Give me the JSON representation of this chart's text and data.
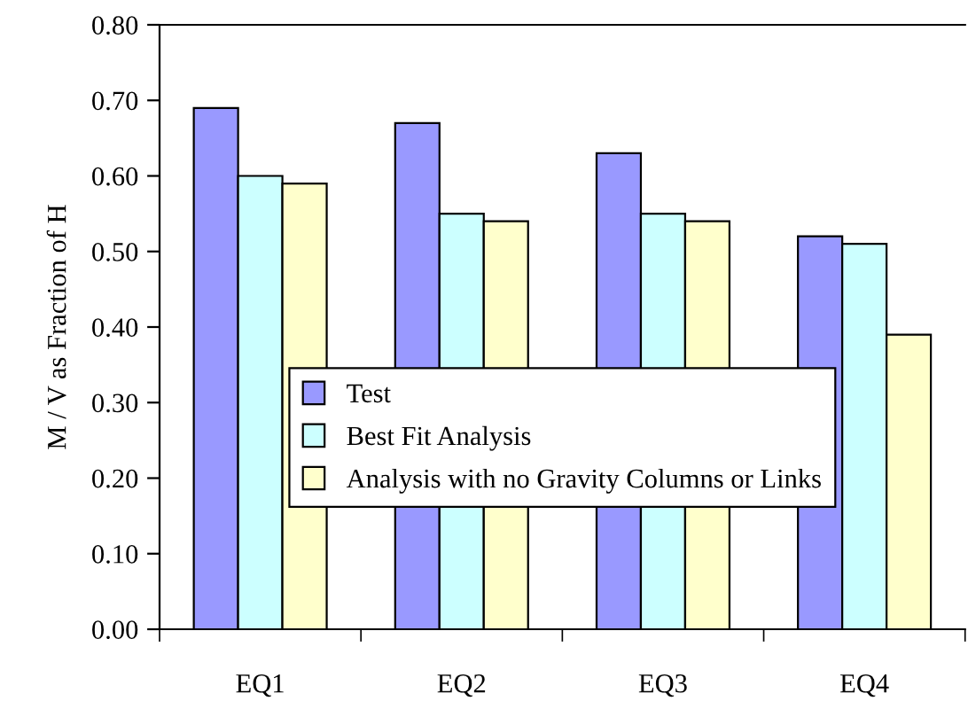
{
  "chart_data": {
    "type": "bar",
    "ylabel": "M / V as Fraction of H",
    "categories": [
      "EQ1",
      "EQ2",
      "EQ3",
      "EQ4"
    ],
    "series": [
      {
        "name": "Test",
        "color": "#9999ff",
        "values": [
          0.69,
          0.67,
          0.63,
          0.52
        ]
      },
      {
        "name": "Best Fit Analysis",
        "color": "#ccffff",
        "values": [
          0.6,
          0.55,
          0.55,
          0.51
        ]
      },
      {
        "name": "Analysis with no Gravity Columns or Links",
        "color": "#ffffcc",
        "values": [
          0.59,
          0.54,
          0.54,
          0.39
        ]
      }
    ],
    "ylim": [
      0,
      0.8
    ],
    "yticks": [
      {
        "value": 0,
        "label": "0.00"
      },
      {
        "value": 0.1,
        "label": "0.10"
      },
      {
        "value": 0.2,
        "label": "0.20"
      },
      {
        "value": 0.3,
        "label": "0.30"
      },
      {
        "value": 0.4,
        "label": "0.40"
      },
      {
        "value": 0.5,
        "label": "0.50"
      },
      {
        "value": 0.6,
        "label": "0.60"
      },
      {
        "value": 0.7,
        "label": "0.70"
      },
      {
        "value": 0.8,
        "label": "0.80"
      }
    ],
    "grid": false,
    "legend": "bottom"
  }
}
